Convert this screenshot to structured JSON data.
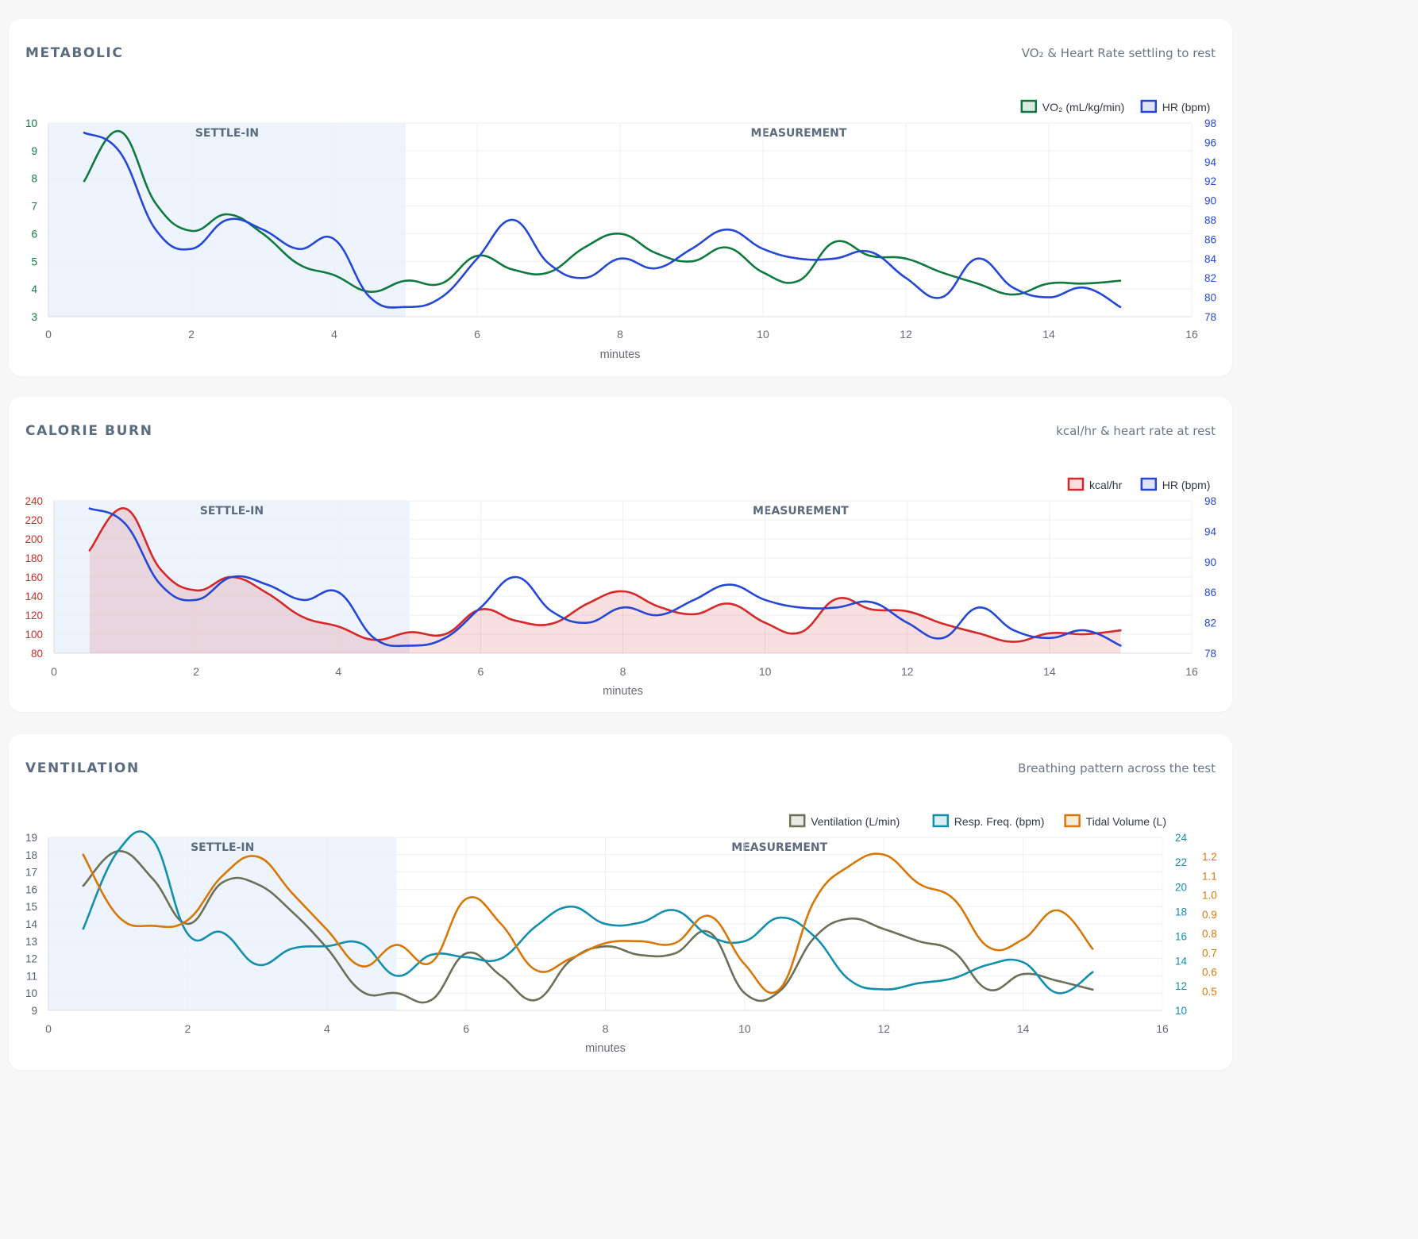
{
  "chart_data": [
    {
      "type": "line",
      "title": "METABOLIC",
      "subtitle": "VO₂ & Heart Rate settling to rest",
      "xlabel": "minutes",
      "xlim": [
        0,
        16
      ],
      "xticks": [
        0,
        2,
        4,
        6,
        8,
        10,
        12,
        14,
        16
      ],
      "zones": [
        {
          "label": "SETTLE-IN",
          "from": 0,
          "to": 5,
          "shaded": true
        },
        {
          "label": "MEASUREMENT",
          "from": 5,
          "to": 16,
          "shaded": false
        }
      ],
      "axes": [
        {
          "id": "y1",
          "side": "left",
          "ylim": [
            3,
            10
          ],
          "ticks": [
            3,
            4,
            5,
            6,
            7,
            8,
            9,
            10
          ],
          "color": "#0f7a3d"
        },
        {
          "id": "y2",
          "side": "right",
          "ylim": [
            78,
            98
          ],
          "ticks": [
            78,
            80,
            82,
            84,
            86,
            88,
            90,
            92,
            94,
            96,
            98
          ],
          "color": "#2447d6"
        }
      ],
      "x": [
        0.5,
        1,
        1.5,
        2,
        2.5,
        3,
        3.5,
        4,
        4.5,
        5,
        5.5,
        6,
        6.5,
        7,
        7.5,
        8,
        8.5,
        9,
        9.5,
        10,
        10.5,
        11,
        11.5,
        12,
        12.5,
        13,
        13.5,
        14,
        14.5,
        15
      ],
      "series": [
        {
          "name": "VO₂ (mL/kg/min)",
          "axis": "y1",
          "color": "#0f7a3d",
          "fill": false,
          "values": [
            7.9,
            9.7,
            7.1,
            6.1,
            6.7,
            6.0,
            4.9,
            4.5,
            3.9,
            4.3,
            4.2,
            5.2,
            4.7,
            4.6,
            5.5,
            6.0,
            5.3,
            5.0,
            5.5,
            4.6,
            4.3,
            5.7,
            5.2,
            5.1,
            4.6,
            4.2,
            3.8,
            4.2,
            4.2,
            4.3
          ]
        },
        {
          "name": "HR (bpm)",
          "axis": "y2",
          "color": "#2447d6",
          "fill": false,
          "values": [
            97,
            95,
            87,
            85,
            88,
            87,
            85,
            86,
            80,
            79,
            80,
            84,
            88,
            83.5,
            82,
            84,
            83,
            85,
            87,
            85,
            84,
            84,
            84.7,
            82,
            80,
            84,
            81,
            80,
            81,
            79
          ]
        }
      ],
      "legend": "top-right",
      "grid": true
    },
    {
      "type": "line",
      "title": "CALORIE BURN",
      "subtitle": "kcal/hr & heart rate at rest",
      "xlabel": "minutes",
      "xlim": [
        0,
        16
      ],
      "xticks": [
        0,
        2,
        4,
        6,
        8,
        10,
        12,
        14,
        16
      ],
      "zones": [
        {
          "label": "SETTLE-IN",
          "from": 0,
          "to": 5,
          "shaded": true
        },
        {
          "label": "MEASUREMENT",
          "from": 5,
          "to": 16,
          "shaded": false
        }
      ],
      "axes": [
        {
          "id": "y1",
          "side": "left",
          "ylim": [
            80,
            240
          ],
          "ticks": [
            80,
            100,
            120,
            140,
            160,
            180,
            200,
            220,
            240
          ],
          "color": "#d62828"
        },
        {
          "id": "y2",
          "side": "right",
          "ylim": [
            78,
            98
          ],
          "ticks": [
            78,
            82,
            86,
            90,
            94,
            98
          ],
          "color": "#2447d6"
        }
      ],
      "x": [
        0.5,
        1,
        1.5,
        2,
        2.5,
        3,
        3.5,
        4,
        4.5,
        5,
        5.5,
        6,
        6.5,
        7,
        7.5,
        8,
        8.5,
        9,
        9.5,
        10,
        10.5,
        11,
        11.5,
        12,
        12.5,
        13,
        13.5,
        14,
        14.5,
        15
      ],
      "series": [
        {
          "name": "kcal/hr",
          "axis": "y1",
          "color": "#d62828",
          "fill": true,
          "values": [
            188,
            232,
            168,
            146,
            160,
            143,
            118,
            108,
            94,
            102,
            100,
            126,
            114,
            111,
            132,
            145,
            129,
            121,
            132,
            112,
            102,
            137,
            126,
            124,
            111,
            101,
            92,
            101,
            100,
            104
          ]
        },
        {
          "name": "HR (bpm)",
          "axis": "y2",
          "color": "#2447d6",
          "fill": false,
          "values": [
            97,
            95,
            87,
            85,
            88,
            87,
            85,
            86,
            80,
            79,
            80,
            84,
            88,
            83.5,
            82,
            84,
            83,
            85,
            87,
            85,
            84,
            84,
            84.7,
            82,
            80,
            84,
            81,
            80,
            81,
            79
          ]
        }
      ],
      "legend": "top-right",
      "grid": true
    },
    {
      "type": "line",
      "title": "VENTILATION",
      "subtitle": "Breathing pattern across the test",
      "xlabel": "minutes",
      "xlim": [
        0,
        16
      ],
      "xticks": [
        0,
        2,
        4,
        6,
        8,
        10,
        12,
        14,
        16
      ],
      "zones": [
        {
          "label": "SETTLE-IN",
          "from": 0,
          "to": 5,
          "shaded": true
        },
        {
          "label": "MEASUREMENT",
          "from": 5,
          "to": 16,
          "shaded": false
        }
      ],
      "axes": [
        {
          "id": "y1",
          "side": "left",
          "ylim": [
            9,
            19
          ],
          "ticks": [
            9,
            10,
            11,
            12,
            13,
            14,
            15,
            16,
            17,
            18,
            19
          ],
          "color": "#555f6d"
        },
        {
          "id": "y2",
          "side": "right",
          "ylim": [
            10,
            24
          ],
          "ticks": [
            10,
            12,
            14,
            16,
            18,
            20,
            22,
            24
          ],
          "color": "#138fae"
        },
        {
          "id": "y3",
          "side": "right2",
          "ylim": [
            0.4,
            1.3
          ],
          "ticks": [
            0.5,
            0.6,
            0.7,
            0.8,
            0.9,
            1.0,
            1.1,
            1.2
          ],
          "color": "#d97706"
        }
      ],
      "x": [
        0.5,
        1,
        1.5,
        2,
        2.5,
        3,
        3.5,
        4,
        4.5,
        5,
        5.5,
        6,
        6.5,
        7,
        7.5,
        8,
        8.5,
        9,
        9.5,
        10,
        10.5,
        11,
        11.5,
        12,
        12.5,
        13,
        13.5,
        14,
        14.5,
        15
      ],
      "series": [
        {
          "name": "Ventilation (L/min)",
          "axis": "y1",
          "color": "#6b7056",
          "fill": false,
          "values": [
            16.2,
            18.2,
            16.6,
            14.0,
            16.4,
            16.3,
            14.7,
            12.6,
            10.1,
            10.0,
            9.6,
            12.3,
            11.0,
            9.6,
            11.9,
            12.7,
            12.2,
            12.3,
            13.5,
            10.0,
            10.1,
            13.2,
            14.3,
            13.7,
            13.0,
            12.4,
            10.2,
            11.1,
            10.7,
            10.2
          ]
        },
        {
          "name": "Resp. Freq. (bpm)",
          "axis": "y2",
          "color": "#138fae",
          "fill": false,
          "values": [
            16.6,
            22.9,
            23.8,
            16.2,
            16.3,
            13.7,
            15.0,
            15.2,
            15.4,
            12.8,
            14.5,
            14.3,
            14.2,
            16.8,
            18.4,
            17.0,
            17.1,
            18.1,
            16.0,
            15.6,
            17.5,
            16.0,
            12.5,
            11.7,
            12.2,
            12.6,
            13.7,
            13.9,
            11.4,
            13.1
          ]
        },
        {
          "name": "Tidal Volume (L)",
          "axis": "y3",
          "color": "#d97706",
          "fill": false,
          "values": [
            1.21,
            0.89,
            0.84,
            0.87,
            1.1,
            1.2,
            1.01,
            0.82,
            0.63,
            0.74,
            0.65,
            0.98,
            0.85,
            0.61,
            0.67,
            0.75,
            0.76,
            0.75,
            0.89,
            0.64,
            0.51,
            0.97,
            1.15,
            1.21,
            1.06,
            0.98,
            0.73,
            0.77,
            0.92,
            0.72
          ]
        }
      ],
      "legend": "top-right",
      "grid": true
    }
  ]
}
